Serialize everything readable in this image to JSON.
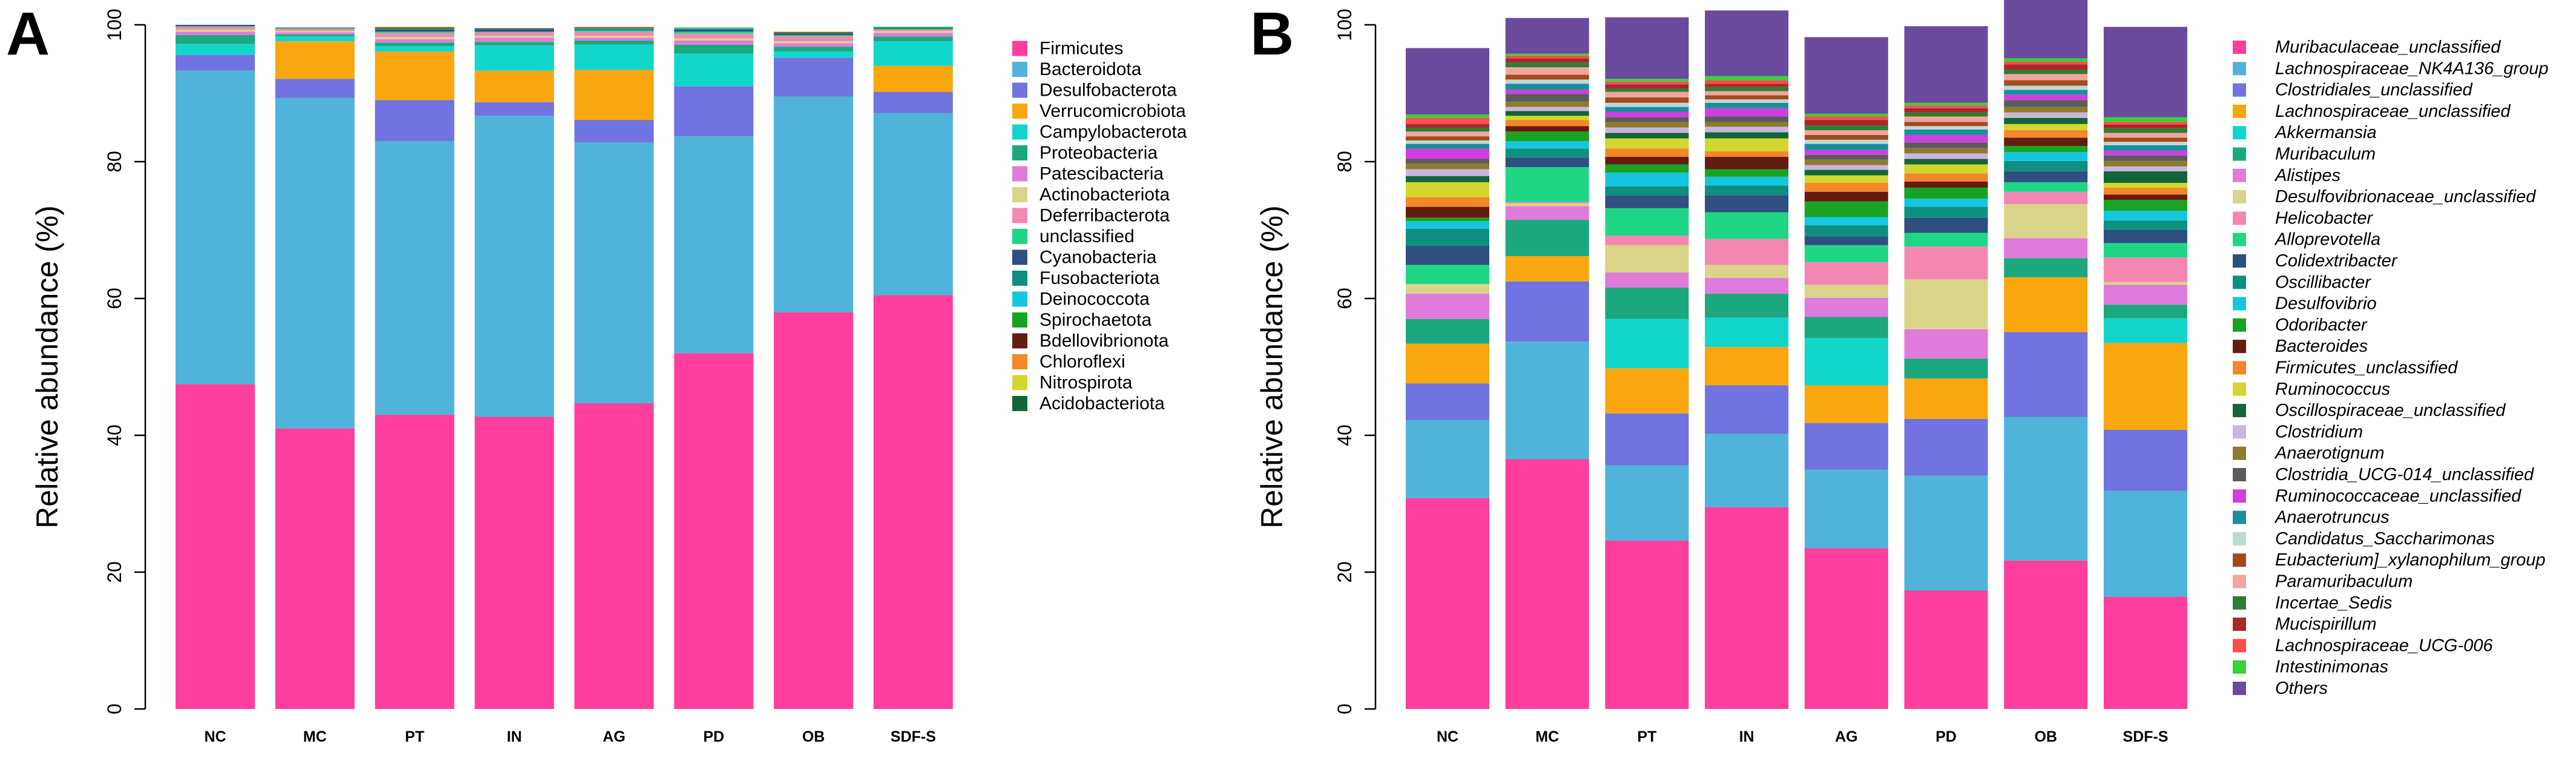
{
  "chart_data": [
    {
      "panel": "A",
      "type": "bar",
      "stacked": true,
      "title": "",
      "xlabel": "",
      "ylabel": "Relative abundance (%)",
      "ylim": [
        0,
        100
      ],
      "yticks": [
        "0",
        "20",
        "40",
        "60",
        "80",
        "100"
      ],
      "legend_position": "right",
      "categories": [
        "NC",
        "MC",
        "PT",
        "IN",
        "AG",
        "PD",
        "OB",
        "SDF-S"
      ],
      "series": [
        {
          "name": "Firmicutes",
          "color": "#FF3E9D",
          "values": [
            47.5,
            41,
            43,
            42.7,
            44.7,
            52,
            58,
            60.5
          ]
        },
        {
          "name": "Bacteroidota",
          "color": "#4FB3DA",
          "values": [
            45.8,
            48.3,
            40,
            44,
            38.1,
            31.7,
            31.5,
            26.6
          ]
        },
        {
          "name": "Desulfobacterota",
          "color": "#7073E0",
          "values": [
            2.3,
            2.8,
            6,
            2,
            3.3,
            7.3,
            5.7,
            3.1
          ]
        },
        {
          "name": "Verrucomicrobiota",
          "color": "#F9A60F",
          "values": [
            0,
            5.5,
            7.1,
            4.6,
            7.3,
            0,
            0,
            3.8
          ]
        },
        {
          "name": "Campylobacterota",
          "color": "#12D6CB",
          "values": [
            1.6,
            0.7,
            0.8,
            3.7,
            3.7,
            4.8,
            0.9,
            3.6
          ]
        },
        {
          "name": "Proteobacteria",
          "color": "#1CA87E",
          "values": [
            1.3,
            0.3,
            0.5,
            0.5,
            0.6,
            1.3,
            0.7,
            0.7
          ]
        },
        {
          "name": "Patescibacteria",
          "color": "#DE7BDB",
          "values": [
            0.5,
            0.3,
            0.5,
            0.6,
            0.4,
            0.6,
            0.5,
            0.5
          ]
        },
        {
          "name": "Actinobacteriota",
          "color": "#D9D48A",
          "values": [
            0.3,
            0.2,
            0.3,
            0.3,
            0.3,
            0.3,
            0.3,
            0.3
          ]
        },
        {
          "name": "Deferribacterota",
          "color": "#F487B1",
          "values": [
            0.4,
            0.3,
            0.6,
            0.5,
            0.6,
            0.7,
            0.7,
            0.2
          ]
        },
        {
          "name": "unclassified",
          "color": "#1FD685",
          "values": [
            0.1,
            0.1,
            0.2,
            0.1,
            0.2,
            0.3,
            0.2,
            0.1
          ]
        },
        {
          "name": "Cyanobacteria",
          "color": "#2E4F7F",
          "values": [
            0.2,
            0.1,
            0.3,
            0.3,
            0.1,
            0.3,
            0.2,
            0.1
          ]
        },
        {
          "name": "Fusobacteriota",
          "color": "#0E8F80",
          "values": [
            0,
            0,
            0.1,
            0.1,
            0.1,
            0.1,
            0.1,
            0.1
          ]
        },
        {
          "name": "Deinococcota",
          "color": "#15C6DE",
          "values": [
            0,
            0,
            0,
            0,
            0.1,
            0.1,
            0,
            0
          ]
        },
        {
          "name": "Spirochaetota",
          "color": "#18A323",
          "values": [
            0,
            0,
            0.1,
            0,
            0,
            0.1,
            0,
            0.1
          ]
        },
        {
          "name": "Bdellovibrionota",
          "color": "#641C10",
          "values": [
            0,
            0,
            0.1,
            0.1,
            0.1,
            0,
            0.1,
            0
          ]
        },
        {
          "name": "Chloroflexi",
          "color": "#F5862A",
          "values": [
            0,
            0,
            0.1,
            0,
            0.1,
            0,
            0.1,
            0
          ]
        },
        {
          "name": "Nitrospirota",
          "color": "#D2D62E",
          "values": [
            0,
            0,
            0,
            0,
            0,
            0,
            0,
            0
          ]
        },
        {
          "name": "Acidobacteriota",
          "color": "#136537",
          "values": [
            0,
            0,
            0,
            0,
            0,
            0,
            0,
            0
          ]
        }
      ]
    },
    {
      "panel": "B",
      "type": "bar",
      "stacked": true,
      "title": "",
      "xlabel": "",
      "ylabel": "Relative abundance (%)",
      "ylim": [
        0,
        100
      ],
      "yticks": [
        "0",
        "20",
        "40",
        "60",
        "80",
        "100"
      ],
      "legend_position": "right",
      "categories": [
        "NC",
        "MC",
        "PT",
        "IN",
        "AG",
        "PD",
        "OB",
        "SDF-S"
      ],
      "series": [
        {
          "name": "Muribaculaceae_unclassified",
          "color": "#FF3E9D",
          "values": [
            30.8,
            36.5,
            24.6,
            29.5,
            23.5,
            17.3,
            21.7,
            16.4
          ]
        },
        {
          "name": "Lachnospiraceae_NK4A136_group",
          "color": "#4FB3DA",
          "values": [
            11.4,
            17.2,
            11,
            10.7,
            11.5,
            16.8,
            21,
            15.5
          ]
        },
        {
          "name": "Clostridiales_unclassified",
          "color": "#7073E0",
          "values": [
            5.4,
            8.8,
            7.6,
            7.1,
            6.8,
            8.3,
            12.4,
            8.9
          ]
        },
        {
          "name": "Lachnospiraceae_unclassified",
          "color": "#F9A60F",
          "values": [
            5.8,
            3.7,
            6.6,
            5.6,
            5.5,
            5.9,
            8,
            12.7
          ]
        },
        {
          "name": "Akkermansia",
          "color": "#12D6CB",
          "values": [
            0,
            0,
            7.2,
            4.3,
            6.9,
            0,
            0,
            3.6
          ]
        },
        {
          "name": "Muribaculum",
          "color": "#1CA87E",
          "values": [
            3.6,
            5.3,
            4.6,
            3.5,
            3.1,
            2.9,
            2.8,
            2
          ]
        },
        {
          "name": "Alistipes",
          "color": "#DE7BDB",
          "values": [
            3.7,
            2,
            2.2,
            2.3,
            2.8,
            4.3,
            2.9,
            2.9
          ]
        },
        {
          "name": "Desulfovibrionaceae_unclassified",
          "color": "#D9D48A",
          "values": [
            1.4,
            0.4,
            4,
            1.9,
            1.9,
            7.3,
            5,
            0.4
          ]
        },
        {
          "name": "Helicobacter",
          "color": "#F487B1",
          "values": [
            0,
            0.2,
            1.4,
            3.8,
            3.3,
            4.8,
            1.8,
            3.6
          ]
        },
        {
          "name": "Alloprevotella",
          "color": "#1FD685",
          "values": [
            2.8,
            5.1,
            4,
            3.9,
            2.5,
            2,
            1.4,
            2.1
          ]
        },
        {
          "name": "Colidextribacter",
          "color": "#2E4F7F",
          "values": [
            2.8,
            1.4,
            1.8,
            2.5,
            1.3,
            2.2,
            1.6,
            1.9
          ]
        },
        {
          "name": "Oscillibacter",
          "color": "#0E8F80",
          "values": [
            2.5,
            1.3,
            1.4,
            1.4,
            1.6,
            1.6,
            1.5,
            1.4
          ]
        },
        {
          "name": "Desulfovibrio",
          "color": "#15C6DE",
          "values": [
            1.1,
            1.1,
            2,
            1.3,
            1.2,
            1.2,
            1.3,
            1.4
          ]
        },
        {
          "name": "Odoribacter",
          "color": "#18A323",
          "values": [
            0.5,
            1.4,
            1.2,
            1.1,
            2.3,
            1.6,
            0.9,
            1.6
          ]
        },
        {
          "name": "Bacteroides",
          "color": "#641C10",
          "values": [
            1.6,
            0.8,
            1.1,
            1.8,
            1.4,
            0.9,
            1.2,
            0.8
          ]
        },
        {
          "name": "Firmicutes_unclassified",
          "color": "#F5862A",
          "values": [
            1.4,
            0.9,
            1.2,
            0.8,
            1.3,
            1.2,
            1.1,
            1
          ]
        },
        {
          "name": "Ruminococcus",
          "color": "#D2D62E",
          "values": [
            2.2,
            0.6,
            1.5,
            1.9,
            1.1,
            1.3,
            0.9,
            0.7
          ]
        },
        {
          "name": "Oscillospiraceae_unclassified",
          "color": "#136537",
          "values": [
            0.9,
            0.7,
            0.8,
            0.9,
            0.8,
            0.8,
            0.9,
            1.7
          ]
        },
        {
          "name": "Clostridium",
          "color": "#C9B6E0",
          "values": [
            1,
            0.6,
            0.8,
            0.8,
            0.7,
            0.8,
            0.8,
            0.7
          ]
        },
        {
          "name": "Anaerotignum",
          "color": "#8F7B2E",
          "values": [
            0.8,
            0.8,
            0.8,
            0.7,
            0.8,
            0.8,
            0.8,
            0.8
          ]
        },
        {
          "name": "Clostridia_UCG-014_unclassified",
          "color": "#5B5B5B",
          "values": [
            0.7,
            1.1,
            0.7,
            0.8,
            0.7,
            0.8,
            1,
            0.8
          ]
        },
        {
          "name": "Ruminococcaceae_unclassified",
          "color": "#CF3FE0",
          "values": [
            1.5,
            0.6,
            0.8,
            1.2,
            0.7,
            1.1,
            0.8,
            0.7
          ]
        },
        {
          "name": "Anaerotruncus",
          "color": "#1B8E9A",
          "values": [
            0.7,
            0.9,
            0.7,
            0.8,
            0.9,
            0.8,
            0.7,
            0.8
          ]
        },
        {
          "name": "Candidatus_Saccharimonas",
          "color": "#BFD8D5",
          "values": [
            0.5,
            0.6,
            0.6,
            0.5,
            0.6,
            0.5,
            0.6,
            0.5
          ]
        },
        {
          "name": "Eubacterium]_xylanophilum_group",
          "color": "#A34A1E",
          "values": [
            0.6,
            0.7,
            0.8,
            0.6,
            0.7,
            0.6,
            0.8,
            0.6
          ]
        },
        {
          "name": "Paramuribaculum",
          "color": "#F2A59F",
          "values": [
            0.7,
            1.1,
            0.8,
            0.6,
            0.7,
            0.8,
            0.9,
            0.7
          ]
        },
        {
          "name": "Incertae_Sedis",
          "color": "#2E7D32",
          "values": [
            0.6,
            0.7,
            0.5,
            0.6,
            0.7,
            0.6,
            0.6,
            0.7
          ]
        },
        {
          "name": "Mucispirillum",
          "color": "#A8282C",
          "values": [
            0.5,
            0.6,
            0.6,
            0.5,
            0.8,
            0.6,
            0.8,
            0.5
          ]
        },
        {
          "name": "Lachnospiraceae_UCG-006",
          "color": "#FF4C4C",
          "values": [
            0.9,
            0.4,
            0.4,
            0.5,
            0.5,
            0.4,
            0.4,
            0.4
          ]
        },
        {
          "name": "Intestinimonas",
          "color": "#38D138",
          "values": [
            0.5,
            0.3,
            0.4,
            0.6,
            0.4,
            0.4,
            0.5,
            0.7
          ]
        },
        {
          "name": "Others",
          "color": "#6A4A9C",
          "values": [
            9.7,
            5.2,
            9,
            9.6,
            11.2,
            11.2,
            8.6,
            13.2
          ]
        }
      ]
    }
  ]
}
